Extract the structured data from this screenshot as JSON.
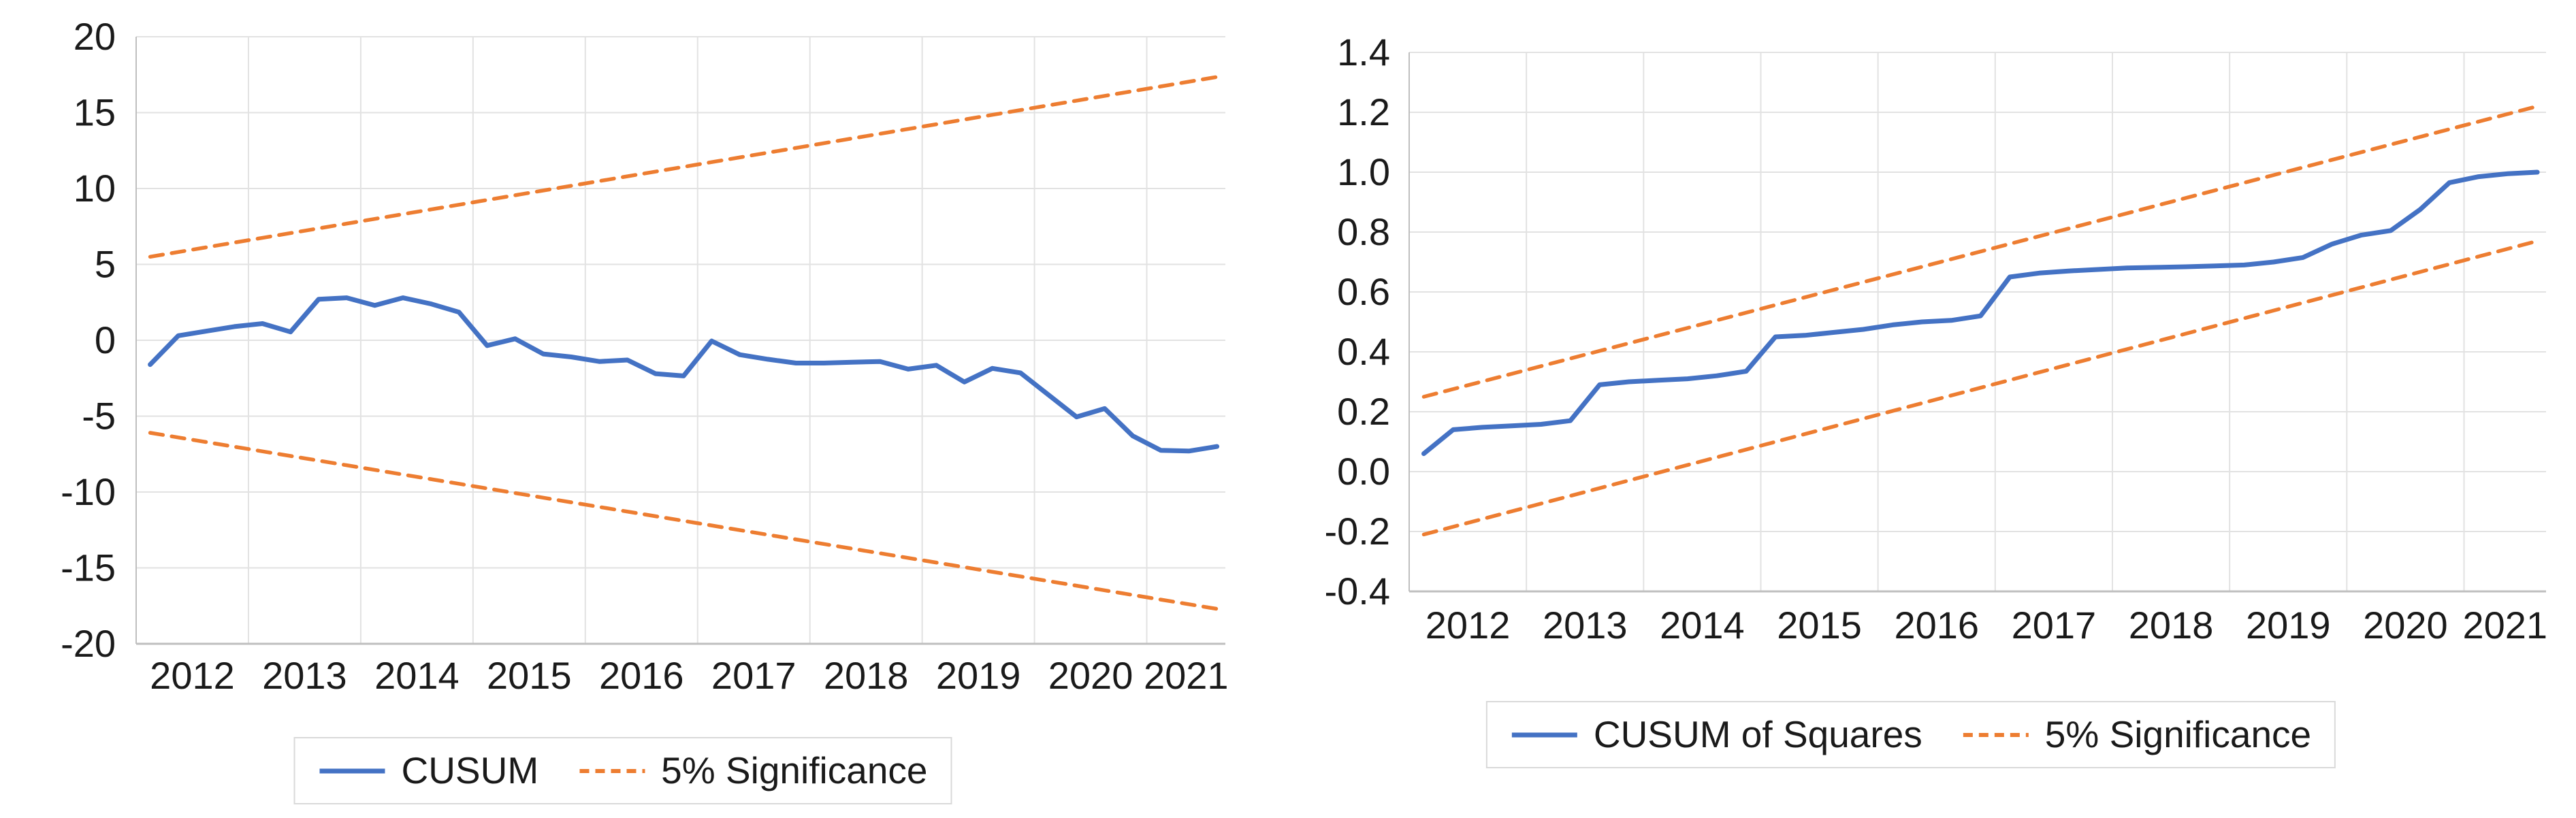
{
  "figure": {
    "description": "CUSUM and CUSUM of Squares parameter-stability test charts with 5% significance bounds",
    "background": "#ffffff"
  },
  "colors": {
    "series_blue": "#4472C4",
    "significance_orange": "#ED7D31",
    "gridline": "#E2E2E2",
    "axis_line": "#BFBFBF",
    "tick_text": "#1a1a1a",
    "legend_border": "#D9D9D9"
  },
  "chart_data": [
    {
      "id": "cusum",
      "type": "line",
      "title": "",
      "xlabel": "",
      "ylabel": "",
      "grid": true,
      "legend_position": "bottom",
      "ylim": [
        -20,
        20
      ],
      "xlim": [
        2012.0,
        2021.7
      ],
      "y_ticks": [
        {
          "v": 20,
          "label": "20"
        },
        {
          "v": 15,
          "label": "15"
        },
        {
          "v": 10,
          "label": "10"
        },
        {
          "v": 5,
          "label": "5"
        },
        {
          "v": 0,
          "label": "0"
        },
        {
          "v": -5,
          "label": "-5"
        },
        {
          "v": -10,
          "label": "-10"
        },
        {
          "v": -15,
          "label": "-15"
        },
        {
          "v": -20,
          "label": "-20"
        }
      ],
      "x_grid_years": [
        2013,
        2014,
        2015,
        2016,
        2017,
        2018,
        2019,
        2020,
        2021
      ],
      "x_tick_labels": [
        {
          "t": 2012.5,
          "label": "2012"
        },
        {
          "t": 2013.5,
          "label": "2013"
        },
        {
          "t": 2014.5,
          "label": "2014"
        },
        {
          "t": 2015.5,
          "label": "2015"
        },
        {
          "t": 2016.5,
          "label": "2016"
        },
        {
          "t": 2017.5,
          "label": "2017"
        },
        {
          "t": 2018.5,
          "label": "2018"
        },
        {
          "t": 2019.5,
          "label": "2019"
        },
        {
          "t": 2020.5,
          "label": "2020"
        },
        {
          "t": 2021.35,
          "label": "2021"
        }
      ],
      "legend": [
        {
          "label": "CUSUM",
          "color": "#4472C4",
          "style": "solid"
        },
        {
          "label": "5% Significance",
          "color": "#ED7D31",
          "style": "dashed"
        }
      ],
      "series": [
        {
          "name": "CUSUM",
          "color": "#4472C4",
          "style": "solid",
          "x": [
            2012.125,
            2012.375,
            2012.625,
            2012.875,
            2013.125,
            2013.375,
            2013.625,
            2013.875,
            2014.125,
            2014.375,
            2014.625,
            2014.875,
            2015.125,
            2015.375,
            2015.625,
            2015.875,
            2016.125,
            2016.375,
            2016.625,
            2016.875,
            2017.125,
            2017.375,
            2017.625,
            2017.875,
            2018.125,
            2018.375,
            2018.625,
            2018.875,
            2019.125,
            2019.375,
            2019.625,
            2019.875,
            2020.125,
            2020.375,
            2020.625,
            2020.875,
            2021.125,
            2021.375,
            2021.625
          ],
          "y": [
            -1.6,
            0.3,
            0.6,
            0.9,
            1.1,
            0.55,
            2.7,
            2.8,
            2.3,
            2.8,
            2.4,
            1.85,
            -0.35,
            0.1,
            -0.9,
            -1.1,
            -1.4,
            -1.3,
            -2.2,
            -2.35,
            -0.05,
            -0.95,
            -1.25,
            -1.5,
            -1.5,
            -1.45,
            -1.4,
            -1.9,
            -1.65,
            -2.75,
            -1.85,
            -2.15,
            -3.6,
            -5.05,
            -4.5,
            -6.3,
            -7.25,
            -7.3,
            -7.0
          ]
        },
        {
          "name": "5% Significance (upper)",
          "color": "#ED7D31",
          "style": "dashed",
          "x": [
            2012.125,
            2021.625
          ],
          "y": [
            5.5,
            17.35
          ]
        },
        {
          "name": "5% Significance (lower)",
          "color": "#ED7D31",
          "style": "dashed",
          "x": [
            2012.125,
            2021.625
          ],
          "y": [
            -6.1,
            -17.7
          ]
        }
      ]
    },
    {
      "id": "cusumsq",
      "type": "line",
      "title": "",
      "xlabel": "",
      "ylabel": "",
      "grid": true,
      "legend_position": "bottom",
      "ylim": [
        -0.4,
        1.4
      ],
      "xlim": [
        2012.0,
        2021.7
      ],
      "y_ticks": [
        {
          "v": 1.4,
          "label": "1.4"
        },
        {
          "v": 1.2,
          "label": "1.2"
        },
        {
          "v": 1.0,
          "label": "1.0"
        },
        {
          "v": 0.8,
          "label": "0.8"
        },
        {
          "v": 0.6,
          "label": "0.6"
        },
        {
          "v": 0.4,
          "label": "0.4"
        },
        {
          "v": 0.2,
          "label": "0.2"
        },
        {
          "v": 0.0,
          "label": "0.0"
        },
        {
          "v": -0.2,
          "label": "-0.2"
        },
        {
          "v": -0.4,
          "label": "-0.4"
        }
      ],
      "x_grid_years": [
        2013,
        2014,
        2015,
        2016,
        2017,
        2018,
        2019,
        2020,
        2021
      ],
      "x_tick_labels": [
        {
          "t": 2012.5,
          "label": "2012"
        },
        {
          "t": 2013.5,
          "label": "2013"
        },
        {
          "t": 2014.5,
          "label": "2014"
        },
        {
          "t": 2015.5,
          "label": "2015"
        },
        {
          "t": 2016.5,
          "label": "2016"
        },
        {
          "t": 2017.5,
          "label": "2017"
        },
        {
          "t": 2018.5,
          "label": "2018"
        },
        {
          "t": 2019.5,
          "label": "2019"
        },
        {
          "t": 2020.5,
          "label": "2020"
        },
        {
          "t": 2021.35,
          "label": "2021"
        }
      ],
      "legend": [
        {
          "label": "CUSUM of Squares",
          "color": "#4472C4",
          "style": "solid"
        },
        {
          "label": "5% Significance",
          "color": "#ED7D31",
          "style": "dashed"
        }
      ],
      "series": [
        {
          "name": "CUSUM of Squares",
          "color": "#4472C4",
          "style": "solid",
          "x": [
            2012.125,
            2012.375,
            2012.625,
            2012.875,
            2013.125,
            2013.375,
            2013.625,
            2013.875,
            2014.125,
            2014.375,
            2014.625,
            2014.875,
            2015.125,
            2015.375,
            2015.625,
            2015.875,
            2016.125,
            2016.375,
            2016.625,
            2016.875,
            2017.125,
            2017.375,
            2017.625,
            2017.875,
            2018.125,
            2018.375,
            2018.625,
            2018.875,
            2019.125,
            2019.375,
            2019.625,
            2019.875,
            2020.125,
            2020.375,
            2020.625,
            2020.875,
            2021.125,
            2021.375,
            2021.625
          ],
          "y": [
            0.06,
            0.14,
            0.148,
            0.153,
            0.158,
            0.17,
            0.29,
            0.3,
            0.305,
            0.31,
            0.32,
            0.335,
            0.45,
            0.455,
            0.465,
            0.475,
            0.49,
            0.5,
            0.505,
            0.52,
            0.65,
            0.663,
            0.67,
            0.675,
            0.68,
            0.682,
            0.684,
            0.687,
            0.69,
            0.7,
            0.715,
            0.76,
            0.79,
            0.805,
            0.875,
            0.965,
            0.985,
            0.995,
            1.0
          ]
        },
        {
          "name": "5% Significance (upper)",
          "color": "#ED7D31",
          "style": "dashed",
          "x": [
            2012.125,
            2021.625
          ],
          "y": [
            0.25,
            1.22
          ]
        },
        {
          "name": "5% Significance (lower)",
          "color": "#ED7D31",
          "style": "dashed",
          "x": [
            2012.125,
            2021.625
          ],
          "y": [
            -0.21,
            0.77
          ]
        }
      ]
    }
  ]
}
